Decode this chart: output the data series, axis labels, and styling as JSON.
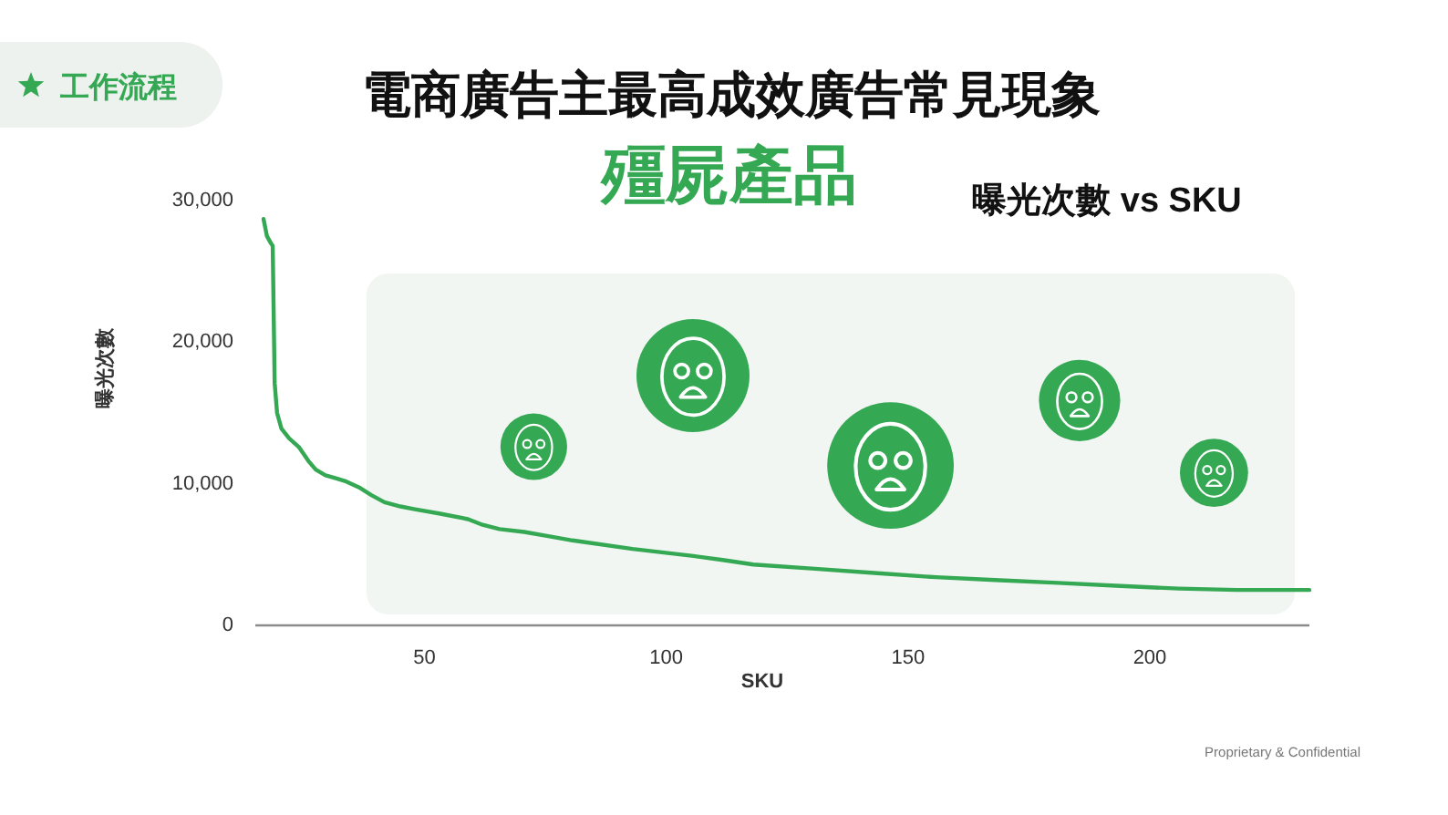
{
  "chart_data": {
    "type": "line",
    "title": "電商廣告主最高成效廣告常見現象",
    "subtitle": "殭屍產品",
    "xlabel": "SKU",
    "ylabel": "曝光次數",
    "annotations": [
      "曝光次數 vs SKU",
      "工作流程",
      "Proprietary & Confidential"
    ],
    "x": [
      16.7,
      17.4,
      18.2,
      18.6,
      19.0,
      19.5,
      20.4,
      22,
      24,
      26,
      27.5,
      29.5,
      31.5,
      33.5,
      36.7,
      39,
      41.7,
      45,
      48,
      53,
      59,
      62,
      65.5,
      70.6,
      75.6,
      80.6,
      93,
      105.6,
      112,
      118,
      130.7,
      143,
      155.8,
      168,
      181,
      193,
      206,
      218,
      233
    ],
    "series": [
      {
        "color": "#34a853",
        "values": [
          28700,
          27500,
          27000,
          26800,
          17100,
          15000,
          13900,
          13200,
          12600,
          11600,
          11000,
          10600,
          10400,
          10200,
          9700,
          9200,
          8700,
          8400,
          8200,
          7900,
          7500,
          7100,
          6800,
          6600,
          6300,
          6000,
          5400,
          4900,
          4600,
          4300,
          4000,
          3700,
          3400,
          3200,
          3000,
          2800,
          2600,
          2500,
          2500
        ]
      }
    ],
    "bands": [
      {
        "axis": "x",
        "from": 38,
        "to": 230,
        "color": "#f1f6f2"
      }
    ],
    "xlim": [
      15,
      233
    ],
    "xticks": [
      50,
      100,
      150,
      200
    ],
    "ylim": [
      0,
      30000
    ],
    "yticks": [
      0,
      {
        "value": 10000,
        "label": "10,000"
      },
      {
        "value": 20000,
        "label": "20,000"
      },
      {
        "value": 30000,
        "label": "30,000"
      }
    ],
    "line_style": "solid"
  }
}
